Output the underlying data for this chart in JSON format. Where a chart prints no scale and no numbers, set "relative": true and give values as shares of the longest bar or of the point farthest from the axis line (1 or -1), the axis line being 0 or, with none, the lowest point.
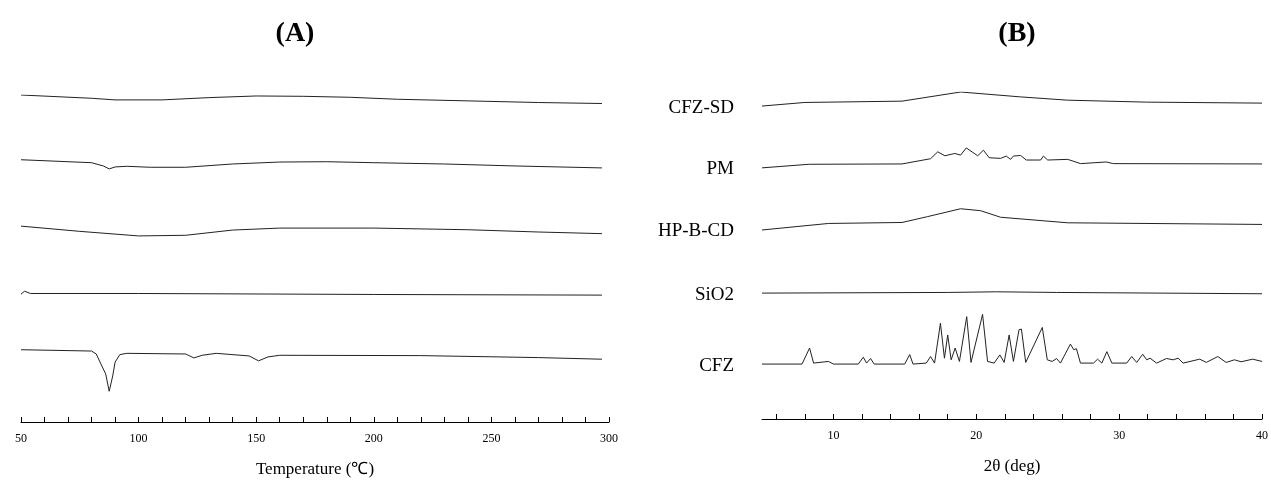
{
  "chart_data": [
    {
      "type": "line",
      "title": "(A)",
      "xlabel": "Temperature (℃)",
      "relative": true,
      "marker": "none",
      "xlim": [
        50,
        300
      ],
      "xticks": [
        50,
        {
          "value": 60,
          "label": null
        },
        {
          "value": 70,
          "label": null
        },
        {
          "value": 80,
          "label": null
        },
        {
          "value": 90,
          "label": null
        },
        100,
        {
          "value": 110,
          "label": null
        },
        {
          "value": 120,
          "label": null
        },
        {
          "value": 130,
          "label": null
        },
        {
          "value": 140,
          "label": null
        },
        150,
        {
          "value": 160,
          "label": null
        },
        {
          "value": 170,
          "label": null
        },
        {
          "value": 180,
          "label": null
        },
        {
          "value": 190,
          "label": null
        },
        200,
        {
          "value": 210,
          "label": null
        },
        {
          "value": 220,
          "label": null
        },
        {
          "value": 230,
          "label": null
        },
        {
          "value": 240,
          "label": null
        },
        250,
        {
          "value": 260,
          "label": null
        },
        {
          "value": 270,
          "label": null
        },
        {
          "value": 280,
          "label": null
        },
        {
          "value": 290,
          "label": null
        },
        300
      ],
      "series": [
        {
          "color": "#222222",
          "x": [
            50,
            80,
            90,
            110,
            130,
            150,
            170,
            190,
            210,
            240,
            270,
            297
          ],
          "values": [
            1.0,
            0.99,
            0.985,
            0.985,
            0.992,
            0.997,
            0.996,
            0.993,
            0.987,
            0.982,
            0.977,
            0.974
          ]
        },
        {
          "color": "#222222",
          "x": [
            50,
            80,
            85,
            87.5,
            90,
            95,
            105,
            120,
            140,
            160,
            180,
            200,
            230,
            260,
            297
          ],
          "values": [
            0.802,
            0.793,
            0.783,
            0.774,
            0.78,
            0.782,
            0.779,
            0.779,
            0.789,
            0.795,
            0.796,
            0.793,
            0.789,
            0.783,
            0.777
          ]
        },
        {
          "color": "#222222",
          "x": [
            50,
            75,
            100,
            120,
            140,
            160,
            200,
            240,
            270,
            297
          ],
          "values": [
            0.599,
            0.583,
            0.569,
            0.571,
            0.587,
            0.593,
            0.593,
            0.588,
            0.581,
            0.576
          ]
        },
        {
          "color": "#222222",
          "x": [
            50,
            51.5,
            54,
            100,
            200,
            297
          ],
          "values": [
            0.391,
            0.4,
            0.393,
            0.393,
            0.39,
            0.388
          ]
        },
        {
          "color": "#222222",
          "x": [
            50,
            80,
            82,
            84,
            86,
            87.5,
            89,
            90,
            92,
            95,
            120,
            123.5,
            127,
            133,
            147,
            151,
            155,
            160,
            220,
            270,
            297
          ],
          "values": [
            0.221,
            0.217,
            0.208,
            0.177,
            0.147,
            0.094,
            0.141,
            0.183,
            0.206,
            0.21,
            0.208,
            0.196,
            0.204,
            0.21,
            0.202,
            0.187,
            0.199,
            0.204,
            0.203,
            0.197,
            0.192
          ]
        }
      ]
    },
    {
      "type": "line",
      "title": "(B)",
      "xlabel": "2θ (deg)",
      "relative": true,
      "marker": "none",
      "xlim": [
        5,
        40
      ],
      "xticks": [
        {
          "value": 6,
          "label": null
        },
        {
          "value": 8,
          "label": null
        },
        10,
        {
          "value": 12,
          "label": null
        },
        {
          "value": 14,
          "label": null
        },
        {
          "value": 16,
          "label": null
        },
        {
          "value": 18,
          "label": null
        },
        20,
        {
          "value": 22,
          "label": null
        },
        {
          "value": 24,
          "label": null
        },
        {
          "value": 26,
          "label": null
        },
        {
          "value": 28,
          "label": null
        },
        30,
        {
          "value": 32,
          "label": null
        },
        {
          "value": 34,
          "label": null
        },
        {
          "value": 36,
          "label": null
        },
        {
          "value": 38,
          "label": null
        },
        40
      ],
      "series": [
        {
          "name": "CFZ-SD",
          "color": "#222222",
          "x": [
            5,
            8.0,
            14.8,
            18.9,
            23.1,
            26.4,
            31.9,
            40
          ],
          "values": [
            0.957,
            0.968,
            0.972,
            1.0,
            0.985,
            0.975,
            0.969,
            0.966
          ]
        },
        {
          "name": "PM",
          "color": "#222222",
          "x": [
            5,
            8.3,
            14.8,
            16.8,
            17.3,
            17.8,
            18.5,
            18.9,
            19.3,
            20.1,
            20.5,
            20.9,
            21.7,
            22.1,
            22.4,
            22.6,
            23.1,
            23.5,
            24.5,
            24.7,
            25.0,
            26.4,
            27.3,
            29.1,
            29.6,
            40
          ],
          "values": [
            0.768,
            0.779,
            0.78,
            0.796,
            0.817,
            0.805,
            0.812,
            0.807,
            0.829,
            0.805,
            0.822,
            0.799,
            0.797,
            0.804,
            0.794,
            0.804,
            0.806,
            0.792,
            0.792,
            0.804,
            0.792,
            0.794,
            0.781,
            0.786,
            0.781,
            0.78
          ]
        },
        {
          "name": "HP-B-CD",
          "color": "#222222",
          "x": [
            5,
            9.65,
            14.8,
            16.6,
            18.9,
            20.3,
            21.7,
            26.4,
            40
          ],
          "values": [
            0.578,
            0.598,
            0.601,
            0.619,
            0.643,
            0.637,
            0.617,
            0.6,
            0.595
          ]
        },
        {
          "name": "SiO2",
          "color": "#222222",
          "x": [
            5,
            18.0,
            21.4,
            25.6,
            40
          ],
          "values": [
            0.385,
            0.387,
            0.389,
            0.387,
            0.383
          ]
        },
        {
          "name": "CFZ",
          "color": "#222222",
          "x": [
            5.0,
            7.8,
            8.33,
            8.61,
            9.65,
            10.0,
            11.74,
            12.09,
            12.32,
            12.6,
            12.85,
            14.99,
            15.34,
            15.57,
            16.5,
            16.8,
            17.08,
            17.49,
            17.77,
            18.0,
            18.24,
            18.52,
            18.82,
            19.33,
            19.63,
            20.44,
            20.79,
            21.25,
            21.65,
            21.95,
            22.3,
            22.6,
            22.99,
            23.16,
            23.46,
            24.62,
            24.97,
            25.31,
            25.62,
            25.89,
            26.59,
            26.82,
            27.01,
            27.29,
            28.21,
            28.49,
            28.79,
            29.14,
            29.49,
            30.53,
            30.88,
            31.23,
            31.65,
            31.93,
            32.16,
            32.62,
            33.32,
            33.78,
            34.13,
            34.48,
            35.64,
            36.1,
            36.91,
            37.49,
            38.07,
            38.54,
            39.35,
            40.0
          ],
          "values": [
            0.168,
            0.168,
            0.217,
            0.171,
            0.176,
            0.168,
            0.168,
            0.189,
            0.171,
            0.185,
            0.168,
            0.168,
            0.197,
            0.168,
            0.171,
            0.191,
            0.171,
            0.293,
            0.186,
            0.257,
            0.181,
            0.217,
            0.176,
            0.313,
            0.173,
            0.32,
            0.176,
            0.171,
            0.196,
            0.173,
            0.257,
            0.176,
            0.273,
            0.275,
            0.173,
            0.28,
            0.181,
            0.176,
            0.185,
            0.171,
            0.229,
            0.212,
            0.215,
            0.171,
            0.171,
            0.183,
            0.171,
            0.206,
            0.171,
            0.171,
            0.191,
            0.173,
            0.198,
            0.181,
            0.186,
            0.171,
            0.185,
            0.181,
            0.186,
            0.171,
            0.183,
            0.173,
            0.191,
            0.173,
            0.181,
            0.175,
            0.183,
            0.176
          ]
        }
      ]
    }
  ]
}
